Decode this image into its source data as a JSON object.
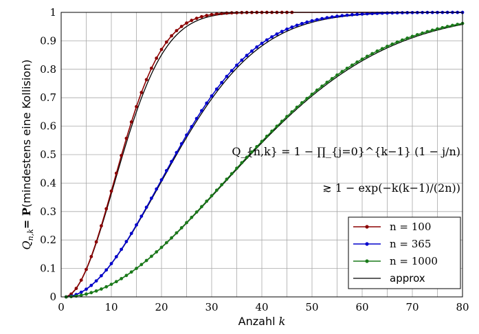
{
  "chart_data": {
    "type": "line",
    "xlabel_prefix": "Anzahl",
    "xlabel_var": "k",
    "ylabel_math": "Q",
    "ylabel_sub": "n,k",
    "ylabel_eq": "= P",
    "ylabel_text": "(mindestens eine Kollision)",
    "xlim": [
      0,
      80
    ],
    "ylim": [
      0,
      1
    ],
    "xticks": [
      "0",
      "10",
      "20",
      "30",
      "40",
      "50",
      "60",
      "70",
      "80"
    ],
    "yticks": [
      "0",
      "0.1",
      "0.2",
      "0.3",
      "0.4",
      "0.5",
      "0.6",
      "0.7",
      "0.8",
      "0.9",
      "1"
    ],
    "grid": true,
    "legend_position": "bottom-right",
    "formula_line1": "Q_{n,k} = 1 − ∏_{j=0}^{k−1} (1 − j/n)",
    "formula_line2": "≳ 1 − exp(−k(k−1)/(2n))",
    "series": [
      {
        "name": "n = 100",
        "n": 100,
        "color": "#8b0000",
        "k_max": 46,
        "k_step": 1
      },
      {
        "name": "n = 365",
        "n": 365,
        "color": "#0000cc",
        "k_max": 80,
        "k_step": 1
      },
      {
        "name": "n = 1000",
        "n": 1000,
        "color": "#1a7a1a",
        "k_max": 80,
        "k_step": 1
      },
      {
        "name": "approx",
        "color": "#000000"
      }
    ]
  }
}
